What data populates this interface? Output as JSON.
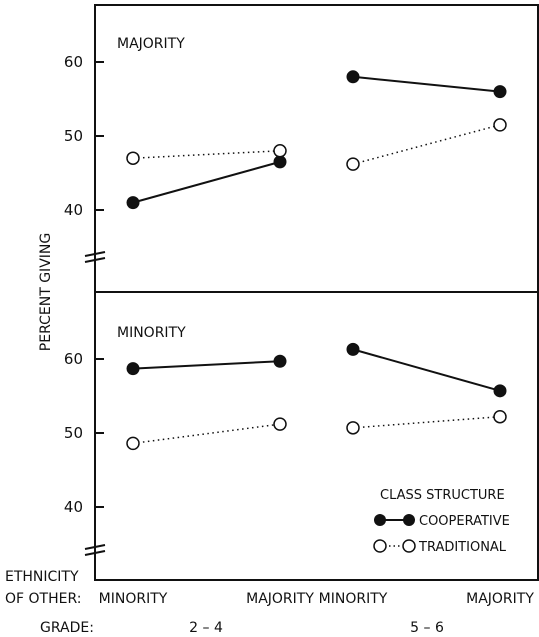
{
  "chart_data": {
    "type": "line",
    "ylabel": "PERCENT GIVING",
    "x_row_label_1": "ETHNICITY",
    "x_row_label_2": "OF OTHER:",
    "grade_row_label": "GRADE:",
    "categories": [
      "MINORITY",
      "MAJORITY",
      "MINORITY",
      "MAJORITY"
    ],
    "grade_groups": [
      {
        "label": "2 – 4",
        "categories": [
          0,
          1
        ]
      },
      {
        "label": "5 – 6",
        "categories": [
          2,
          3
        ]
      }
    ],
    "legend": {
      "title": "CLASS STRUCTURE",
      "placement": "bottom-right"
    },
    "panels": [
      {
        "name": "MAJORITY",
        "yticks": [
          40,
          50,
          60
        ],
        "ylim": [
          35,
          67
        ],
        "series": [
          {
            "name": "COOPERATIVE",
            "style": "solid-filled",
            "segments": [
              [
                41,
                46.5
              ],
              [
                58,
                56
              ]
            ]
          },
          {
            "name": "TRADITIONAL",
            "style": "dotted-open",
            "segments": [
              [
                47,
                48
              ],
              [
                46.2,
                51.5
              ]
            ]
          }
        ]
      },
      {
        "name": "MINORITY",
        "yticks": [
          40,
          50,
          60
        ],
        "ylim": [
          35,
          67
        ],
        "series": [
          {
            "name": "COOPERATIVE",
            "style": "solid-filled",
            "segments": [
              [
                58.7,
                59.7
              ],
              [
                61.3,
                55.7
              ]
            ]
          },
          {
            "name": "TRADITIONAL",
            "style": "dotted-open",
            "segments": [
              [
                48.6,
                51.2
              ],
              [
                50.7,
                52.2
              ]
            ]
          }
        ]
      }
    ]
  }
}
